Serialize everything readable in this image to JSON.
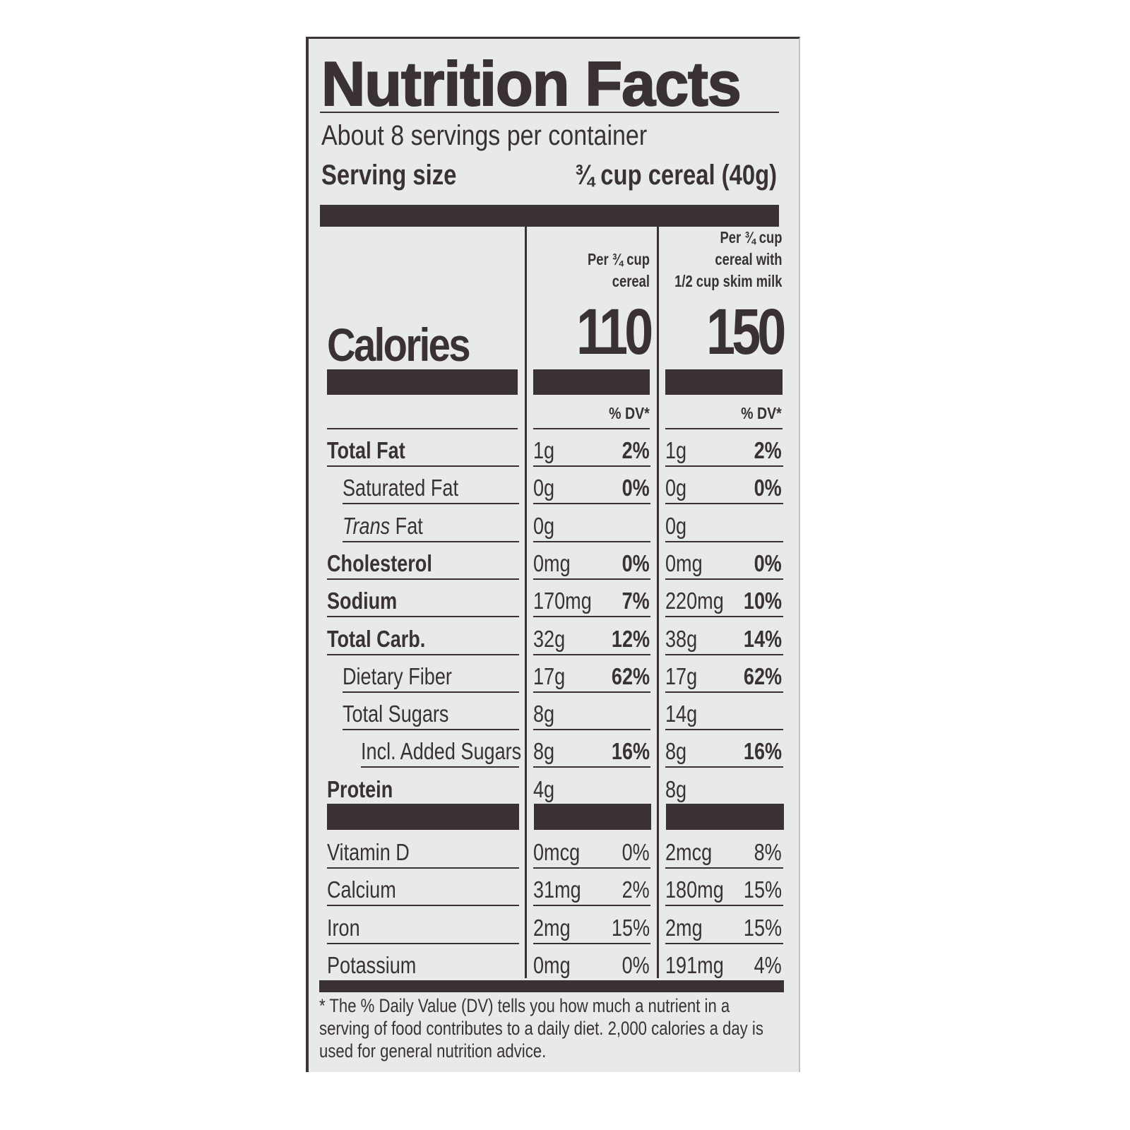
{
  "title": "Nutrition Facts",
  "servings_per_container": "About 8 servings per container",
  "serving_size_label": "Serving size",
  "serving_size_value": "¾ cup cereal (40g)",
  "columns": [
    {
      "header_lines": [
        "Per ¾ cup",
        "cereal"
      ],
      "calories": "110",
      "dv_header": "% DV*"
    },
    {
      "header_lines": [
        "Per ¾ cup",
        "cereal with",
        "1/2 cup skim milk"
      ],
      "calories": "150",
      "dv_header": "% DV*"
    }
  ],
  "calories_label": "Calories",
  "nutrients": [
    {
      "label": "Total Fat",
      "bold": true,
      "indent": 0,
      "values": [
        [
          "1g",
          "2%"
        ],
        [
          "1g",
          "2%"
        ]
      ]
    },
    {
      "label": "Saturated Fat",
      "bold": false,
      "indent": 1,
      "values": [
        [
          "0g",
          "0%"
        ],
        [
          "0g",
          "0%"
        ]
      ]
    },
    {
      "label": "Fat",
      "italic_prefix": "Trans",
      "bold": false,
      "indent": 1,
      "values": [
        [
          "0g",
          ""
        ],
        [
          "0g",
          ""
        ]
      ]
    },
    {
      "label": "Cholesterol",
      "bold": true,
      "indent": 0,
      "values": [
        [
          "0mg",
          "0%"
        ],
        [
          "0mg",
          "0%"
        ]
      ]
    },
    {
      "label": "Sodium",
      "bold": true,
      "indent": 0,
      "values": [
        [
          "170mg",
          "7%"
        ],
        [
          "220mg",
          "10%"
        ]
      ]
    },
    {
      "label": "Total Carb.",
      "bold": true,
      "indent": 0,
      "values": [
        [
          "32g",
          "12%"
        ],
        [
          "38g",
          "14%"
        ]
      ]
    },
    {
      "label": "Dietary Fiber",
      "bold": false,
      "indent": 1,
      "values": [
        [
          "17g",
          "62%"
        ],
        [
          "17g",
          "62%"
        ]
      ]
    },
    {
      "label": "Total Sugars",
      "bold": false,
      "indent": 1,
      "values": [
        [
          "8g",
          ""
        ],
        [
          "14g",
          ""
        ]
      ]
    },
    {
      "label": "Incl. Added Sugars",
      "bold": false,
      "indent": 2,
      "values": [
        [
          "8g",
          "16%"
        ],
        [
          "8g",
          "16%"
        ]
      ]
    },
    {
      "label": "Protein",
      "bold": true,
      "indent": 0,
      "values": [
        [
          "4g",
          ""
        ],
        [
          "8g",
          ""
        ]
      ]
    }
  ],
  "vitamins": [
    {
      "label": "Vitamin D",
      "values": [
        [
          "0mcg",
          "0%"
        ],
        [
          "2mcg",
          "8%"
        ]
      ]
    },
    {
      "label": "Calcium",
      "values": [
        [
          "31mg",
          "2%"
        ],
        [
          "180mg",
          "15%"
        ]
      ]
    },
    {
      "label": "Iron",
      "values": [
        [
          "2mg",
          "15%"
        ],
        [
          "2mg",
          "15%"
        ]
      ]
    },
    {
      "label": "Potassium",
      "values": [
        [
          "0mg",
          "0%"
        ],
        [
          "191mg",
          "4%"
        ]
      ]
    }
  ],
  "footnote": "* The % Daily Value (DV) tells you how much a nutrient in a serving of food contributes to a daily diet. 2,000 calories a day is used for general nutrition advice.",
  "colors": {
    "ink": "#3a3232",
    "label_background": "#e7eae8"
  }
}
